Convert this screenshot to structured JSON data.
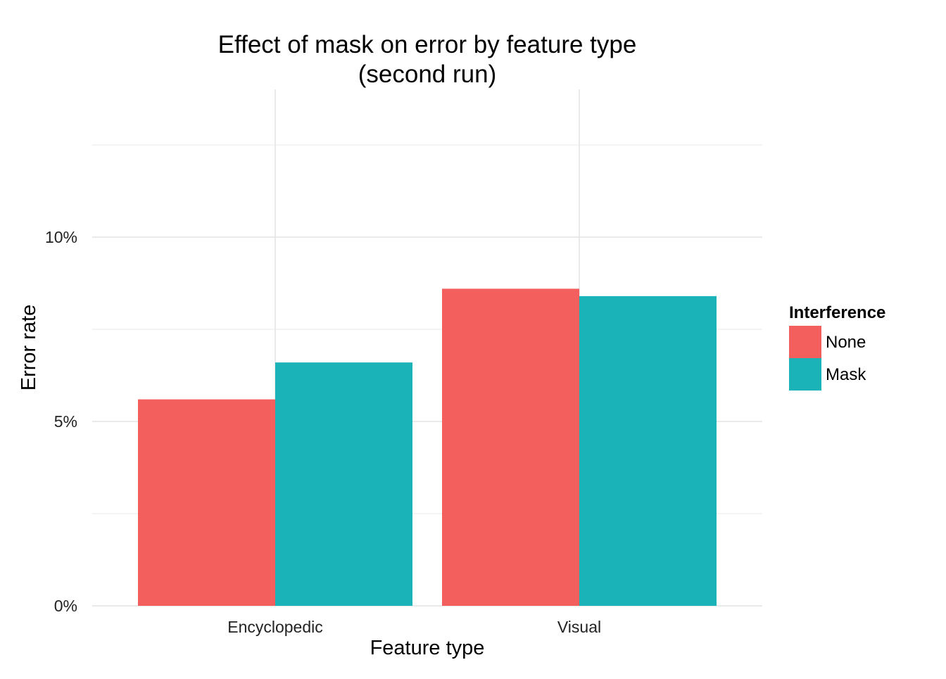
{
  "chart_data": {
    "type": "bar",
    "title": "Effect of mask on error by feature type",
    "subtitle": "(second run)",
    "xlabel": "Feature type",
    "ylabel": "Error rate",
    "categories": [
      "Encyclopedic",
      "Visual"
    ],
    "series": [
      {
        "name": "None",
        "values": [
          5.6,
          8.6
        ],
        "color": "#F25F5C"
      },
      {
        "name": "Mask",
        "values": [
          6.6,
          8.4
        ],
        "color": "#1AB4B8"
      }
    ],
    "ylim": [
      0,
      13.0
    ],
    "y_ticks": [
      0,
      5,
      10
    ],
    "y_tick_labels": [
      "0%",
      "5%",
      "10%"
    ],
    "grid": true,
    "legend": {
      "title": "Interference",
      "position": "right"
    }
  }
}
